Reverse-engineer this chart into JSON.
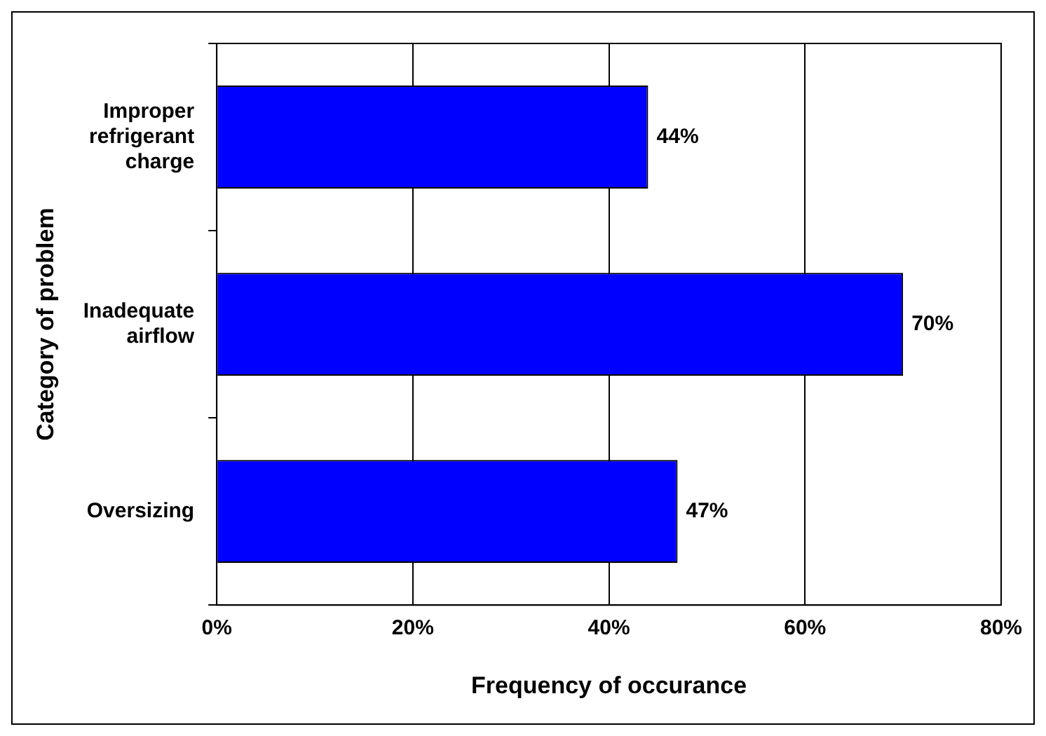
{
  "chart_data": {
    "type": "bar",
    "orientation": "horizontal",
    "categories": [
      "Improper refrigerant charge",
      "Inadequate airflow",
      "Oversizing"
    ],
    "values": [
      44,
      70,
      47
    ],
    "value_labels": [
      "44%",
      "70%",
      "47%"
    ],
    "color": "#0000ff",
    "xlabel": "Frequency of occurance",
    "ylabel": "Category of problem",
    "xlim": [
      0,
      80
    ],
    "xticks": [
      {
        "value": 0,
        "label": "0%"
      },
      {
        "value": 20,
        "label": "20%"
      },
      {
        "value": 40,
        "label": "40%"
      },
      {
        "value": 60,
        "label": "60%"
      },
      {
        "value": 80,
        "label": "80%"
      }
    ],
    "grid": "x",
    "legend": false
  }
}
